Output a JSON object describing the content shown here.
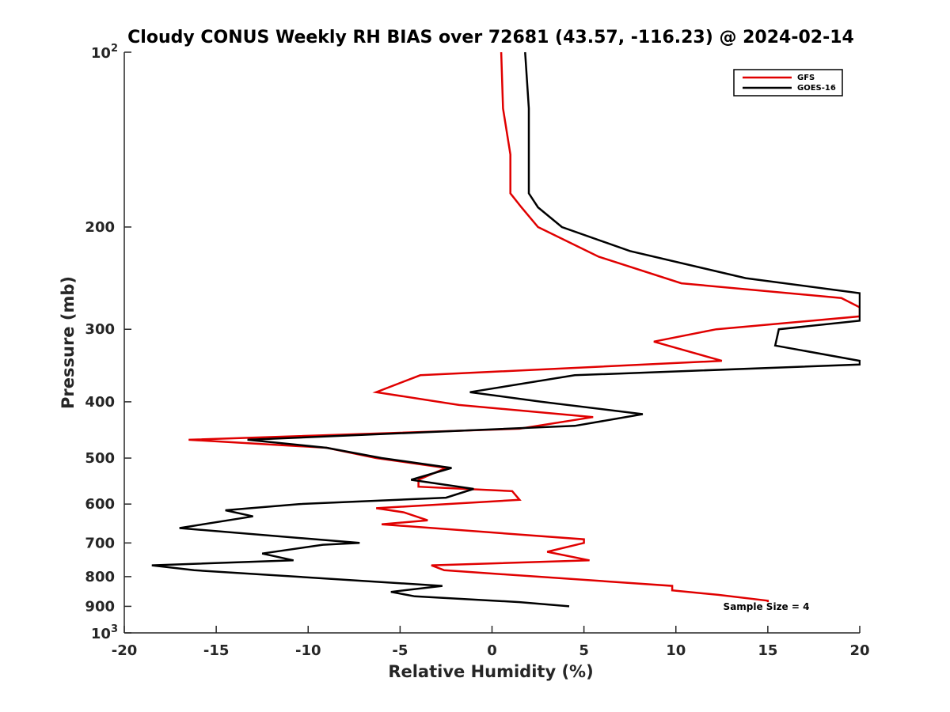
{
  "chart_data": {
    "type": "line",
    "title": "Cloudy CONUS Weekly RH BIAS over 72681 (43.57, -116.23) @ 2024-02-14",
    "xlabel": "Relative Humidity (%)",
    "ylabel": "Pressure (mb)",
    "xlim": [
      -20,
      20
    ],
    "ylim": [
      100,
      1000
    ],
    "y_scale": "log",
    "y_reversed": true,
    "grid": false,
    "legend_position": "top-right",
    "x_ticks": [
      -20,
      -15,
      -10,
      -5,
      0,
      5,
      10,
      15,
      20
    ],
    "x_tick_labels": [
      "-20",
      "-15",
      "-10",
      "-5",
      "0",
      "5",
      "10",
      "15",
      "20"
    ],
    "y_ticks": [
      200,
      300,
      400,
      500,
      600,
      700,
      800,
      900
    ],
    "y_tick_labels": [
      "200",
      "300",
      "400",
      "500",
      "600",
      "700",
      "800",
      "900"
    ],
    "y_end_labels": {
      "top": {
        "base": "10",
        "exp": "2"
      },
      "bottom": {
        "base": "10",
        "exp": "3"
      }
    },
    "annotation": "Sample Size = 4",
    "series": [
      {
        "name": "GFS",
        "color": "#e00000",
        "points": [
          [
            0.5,
            100
          ],
          [
            0.6,
            125
          ],
          [
            1.0,
            150
          ],
          [
            1.0,
            175
          ],
          [
            1.6,
            185
          ],
          [
            2.5,
            200
          ],
          [
            5.8,
            225
          ],
          [
            10.3,
            250
          ],
          [
            19.0,
            265
          ],
          [
            20.0,
            275
          ],
          [
            20.0,
            285
          ],
          [
            12.2,
            300
          ],
          [
            8.8,
            315
          ],
          [
            12.5,
            340
          ],
          [
            -3.9,
            360
          ],
          [
            -6.3,
            385
          ],
          [
            -1.8,
            405
          ],
          [
            5.5,
            425
          ],
          [
            1.5,
            445
          ],
          [
            -16.5,
            465
          ],
          [
            -9.0,
            480
          ],
          [
            -6.3,
            500
          ],
          [
            -2.5,
            520
          ],
          [
            -4.0,
            545
          ],
          [
            -4.0,
            560
          ],
          [
            1.1,
            570
          ],
          [
            1.5,
            590
          ],
          [
            -6.3,
            610
          ],
          [
            -4.8,
            620
          ],
          [
            -3.5,
            640
          ],
          [
            -6.0,
            650
          ],
          [
            5.0,
            690
          ],
          [
            5.0,
            700
          ],
          [
            3.0,
            725
          ],
          [
            5.3,
            750
          ],
          [
            -3.3,
            765
          ],
          [
            -2.6,
            780
          ],
          [
            9.8,
            830
          ],
          [
            9.8,
            845
          ],
          [
            12.3,
            860
          ],
          [
            15.0,
            880
          ],
          [
            15.0,
            885
          ]
        ]
      },
      {
        "name": "GOES-16",
        "color": "#000000",
        "points": [
          [
            1.8,
            100
          ],
          [
            2.0,
            125
          ],
          [
            2.0,
            150
          ],
          [
            2.0,
            175
          ],
          [
            2.5,
            185
          ],
          [
            3.8,
            200
          ],
          [
            7.5,
            220
          ],
          [
            13.8,
            245
          ],
          [
            20.0,
            260
          ],
          [
            20.0,
            290
          ],
          [
            15.6,
            300
          ],
          [
            15.4,
            320
          ],
          [
            20.0,
            340
          ],
          [
            20.0,
            345
          ],
          [
            4.5,
            360
          ],
          [
            -1.2,
            385
          ],
          [
            2.7,
            400
          ],
          [
            8.2,
            420
          ],
          [
            4.5,
            440
          ],
          [
            -13.3,
            465
          ],
          [
            -9.0,
            480
          ],
          [
            -6.0,
            500
          ],
          [
            -2.2,
            520
          ],
          [
            -4.4,
            545
          ],
          [
            -1.0,
            565
          ],
          [
            -2.5,
            585
          ],
          [
            -10.5,
            600
          ],
          [
            -14.5,
            615
          ],
          [
            -13.0,
            630
          ],
          [
            -17.0,
            660
          ],
          [
            -7.2,
            700
          ],
          [
            -9.2,
            705
          ],
          [
            -12.5,
            730
          ],
          [
            -10.8,
            750
          ],
          [
            -18.5,
            765
          ],
          [
            -16.2,
            780
          ],
          [
            -2.7,
            830
          ],
          [
            -5.5,
            850
          ],
          [
            -4.2,
            865
          ],
          [
            1.5,
            885
          ],
          [
            4.2,
            900
          ]
        ]
      }
    ]
  }
}
